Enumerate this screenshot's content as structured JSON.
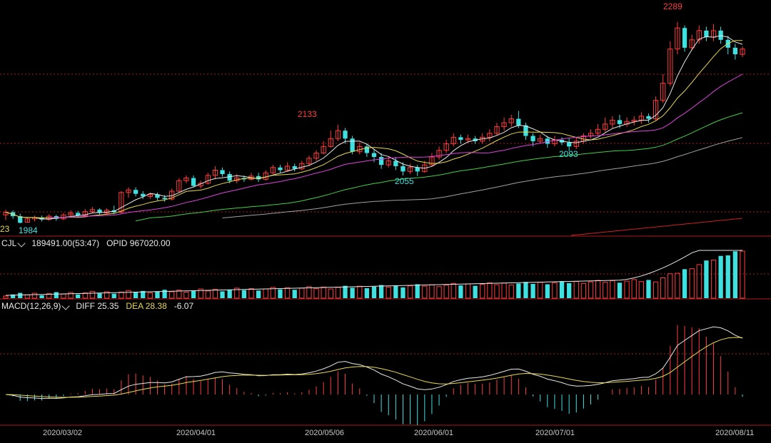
{
  "panels": {
    "volume": {
      "indicator": "CJL",
      "volume_label": "189491.00(53:47)",
      "opid_label": "OPID 967020.00"
    },
    "macd": {
      "indicator": "MACD(12,26,9)",
      "diff_label": "DIFF 25.35",
      "dea_label": "DEA 28.38",
      "macd_value": "-6.07"
    }
  },
  "x_dates": [
    "2020/03/02",
    "2020/04/01",
    "2020/05/06",
    "2020/06/01",
    "2020/07/01",
    "2020/08/11"
  ],
  "price_marks": {
    "left_clip": "23",
    "low_1984": "1984",
    "high_2133": "2133",
    "low_2055": "2055",
    "low_2093": "2093",
    "high_2289": "2289"
  },
  "colors": {
    "up": "#ff3b3b",
    "down": "#3fe0e0",
    "ma5": "#e8e8e8",
    "ma10": "#e8d84a",
    "ma20": "#e040e0",
    "ma40": "#40d040",
    "ma60": "#a0a0a0",
    "grid": "#aa1a1a"
  },
  "chart_data": [
    {
      "type": "candlestick",
      "yref": [
        1980,
        2290
      ],
      "candles": [
        [
          1996,
          2000,
          1988,
          2004
        ],
        [
          2000,
          1994,
          1990,
          2003
        ],
        [
          1994,
          1984,
          1983,
          1998
        ],
        [
          1985,
          1990,
          1984,
          1993
        ],
        [
          1990,
          1992,
          1986,
          1995
        ],
        [
          1992,
          1989,
          1986,
          1995
        ],
        [
          1989,
          1994,
          1987,
          1997
        ],
        [
          1994,
          1990,
          1987,
          1996
        ],
        [
          1990,
          1996,
          1988,
          1999
        ],
        [
          1996,
          1999,
          1992,
          2003
        ],
        [
          1999,
          1995,
          1992,
          2002
        ],
        [
          1995,
          2001,
          1993,
          2005
        ],
        [
          2001,
          2004,
          1999,
          2008
        ],
        [
          2004,
          1999,
          1996,
          2006
        ],
        [
          1999,
          2003,
          1997,
          2006
        ],
        [
          2003,
          2000,
          1997,
          2010
        ],
        [
          2000,
          2030,
          1998,
          2032
        ],
        [
          2030,
          2034,
          2022,
          2038
        ],
        [
          2034,
          2028,
          2024,
          2038
        ],
        [
          2028,
          2024,
          2020,
          2032
        ],
        [
          2024,
          2027,
          2020,
          2030
        ],
        [
          2027,
          2022,
          2018,
          2030
        ],
        [
          2022,
          2020,
          2016,
          2026
        ],
        [
          2020,
          2032,
          2018,
          2036
        ],
        [
          2032,
          2048,
          2030,
          2052
        ],
        [
          2048,
          2052,
          2044,
          2056
        ],
        [
          2052,
          2040,
          2038,
          2056
        ],
        [
          2040,
          2044,
          2036,
          2048
        ],
        [
          2044,
          2056,
          2042,
          2060
        ],
        [
          2056,
          2064,
          2050,
          2070
        ],
        [
          2064,
          2058,
          2054,
          2068
        ],
        [
          2058,
          2048,
          2044,
          2062
        ],
        [
          2048,
          2052,
          2044,
          2058
        ],
        [
          2052,
          2050,
          2046,
          2056
        ],
        [
          2050,
          2055,
          2048,
          2060
        ],
        [
          2055,
          2050,
          2046,
          2060
        ],
        [
          2050,
          2060,
          2048,
          2064
        ],
        [
          2060,
          2068,
          2058,
          2072
        ],
        [
          2068,
          2064,
          2060,
          2072
        ],
        [
          2064,
          2070,
          2062,
          2076
        ],
        [
          2070,
          2066,
          2062,
          2074
        ],
        [
          2066,
          2074,
          2064,
          2078
        ],
        [
          2074,
          2082,
          2070,
          2086
        ],
        [
          2082,
          2090,
          2078,
          2094
        ],
        [
          2090,
          2100,
          2088,
          2108
        ],
        [
          2100,
          2112,
          2098,
          2124
        ],
        [
          2112,
          2124,
          2108,
          2133
        ],
        [
          2124,
          2112,
          2104,
          2128
        ],
        [
          2112,
          2092,
          2088,
          2116
        ],
        [
          2092,
          2100,
          2088,
          2106
        ],
        [
          2100,
          2090,
          2084,
          2104
        ],
        [
          2090,
          2084,
          2076,
          2096
        ],
        [
          2084,
          2072,
          2066,
          2090
        ],
        [
          2072,
          2078,
          2068,
          2084
        ],
        [
          2078,
          2070,
          2064,
          2084
        ],
        [
          2070,
          2062,
          2056,
          2076
        ],
        [
          2062,
          2068,
          2058,
          2074
        ],
        [
          2068,
          2062,
          2055,
          2072
        ],
        [
          2062,
          2072,
          2060,
          2078
        ],
        [
          2072,
          2084,
          2070,
          2090
        ],
        [
          2084,
          2094,
          2080,
          2100
        ],
        [
          2094,
          2104,
          2090,
          2110
        ],
        [
          2104,
          2114,
          2100,
          2120
        ],
        [
          2114,
          2110,
          2104,
          2118
        ],
        [
          2110,
          2112,
          2106,
          2118
        ],
        [
          2112,
          2108,
          2104,
          2116
        ],
        [
          2108,
          2114,
          2104,
          2120
        ],
        [
          2114,
          2120,
          2108,
          2126
        ],
        [
          2120,
          2130,
          2116,
          2136
        ],
        [
          2130,
          2136,
          2124,
          2144
        ],
        [
          2136,
          2142,
          2130,
          2148
        ],
        [
          2142,
          2132,
          2128,
          2154
        ],
        [
          2132,
          2116,
          2110,
          2136
        ],
        [
          2116,
          2108,
          2100,
          2120
        ],
        [
          2108,
          2112,
          2104,
          2118
        ],
        [
          2112,
          2104,
          2098,
          2116
        ],
        [
          2104,
          2110,
          2100,
          2116
        ],
        [
          2110,
          2106,
          2102,
          2114
        ],
        [
          2106,
          2100,
          2093,
          2112
        ],
        [
          2100,
          2108,
          2096,
          2114
        ],
        [
          2108,
          2116,
          2104,
          2120
        ],
        [
          2116,
          2120,
          2112,
          2126
        ],
        [
          2120,
          2126,
          2116,
          2134
        ],
        [
          2126,
          2134,
          2122,
          2144
        ],
        [
          2134,
          2140,
          2128,
          2146
        ],
        [
          2140,
          2134,
          2128,
          2148
        ],
        [
          2134,
          2138,
          2130,
          2144
        ],
        [
          2138,
          2140,
          2132,
          2146
        ],
        [
          2140,
          2146,
          2134,
          2152
        ],
        [
          2146,
          2142,
          2136,
          2150
        ],
        [
          2142,
          2170,
          2140,
          2176
        ],
        [
          2170,
          2196,
          2166,
          2210
        ],
        [
          2196,
          2248,
          2192,
          2260
        ],
        [
          2248,
          2280,
          2240,
          2289
        ],
        [
          2280,
          2250,
          2244,
          2284
        ],
        [
          2250,
          2262,
          2246,
          2270
        ],
        [
          2262,
          2276,
          2256,
          2284
        ],
        [
          2276,
          2266,
          2260,
          2282
        ],
        [
          2266,
          2276,
          2260,
          2286
        ],
        [
          2276,
          2262,
          2256,
          2282
        ],
        [
          2262,
          2250,
          2240,
          2268
        ],
        [
          2250,
          2240,
          2232,
          2256
        ],
        [
          2240,
          2248,
          2236,
          2252
        ]
      ]
    }
  ]
}
